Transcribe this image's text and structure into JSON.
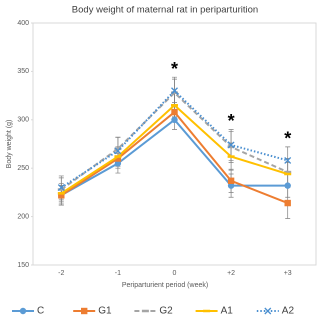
{
  "chart_data": {
    "type": "line",
    "title": "Body weight of maternal rat in periparturition",
    "x_label": "Periparturient period (week)",
    "y_label": "Body weight (g)",
    "categories": [
      "-2",
      "-1",
      "0",
      "+2",
      "+3"
    ],
    "ylim": [
      150,
      400
    ],
    "yticks": [
      150,
      200,
      250,
      300,
      350,
      400
    ],
    "legend": "bottom",
    "series": [
      {
        "name": "C",
        "color": "#5b9bd5",
        "dash": "solid",
        "marker": "circle",
        "values": [
          222,
          255,
          300,
          232,
          232
        ],
        "errors": [
          10,
          10,
          10,
          12,
          12
        ]
      },
      {
        "name": "G1",
        "color": "#ed7d31",
        "dash": "solid",
        "marker": "square",
        "values": [
          222,
          260,
          308,
          237,
          214
        ],
        "errors": [
          10,
          10,
          10,
          12,
          16
        ]
      },
      {
        "name": "G2",
        "color": "#a5a5a5",
        "dash": "dashed",
        "marker": "dash",
        "values": [
          228,
          270,
          328,
          272,
          246
        ],
        "errors": [
          12,
          12,
          14,
          16,
          14
        ]
      },
      {
        "name": "A1",
        "color": "#ffc000",
        "dash": "solid",
        "marker": "dash",
        "values": [
          224,
          262,
          315,
          262,
          244
        ],
        "errors": [
          10,
          10,
          12,
          14,
          12
        ]
      },
      {
        "name": "A2",
        "color": "#4a8fd0",
        "dash": "dotted",
        "marker": "x",
        "values": [
          230,
          268,
          330,
          274,
          258
        ],
        "errors": [
          12,
          14,
          14,
          16,
          14
        ]
      }
    ],
    "annotations": [
      {
        "category": "0",
        "text": "*"
      },
      {
        "category": "+2",
        "text": "*"
      },
      {
        "category": "+3",
        "text": "*"
      }
    ]
  }
}
